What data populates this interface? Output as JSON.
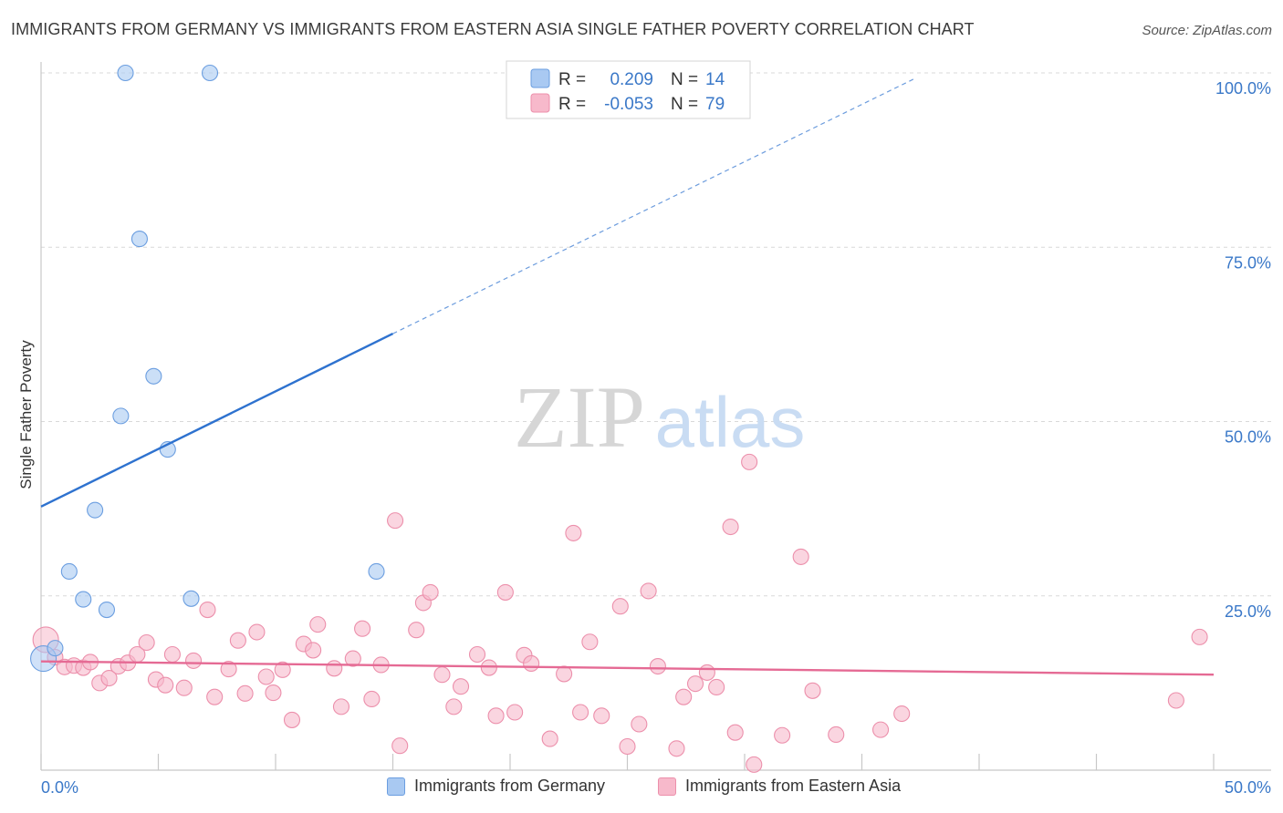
{
  "title": "IMMIGRANTS FROM GERMANY VS IMMIGRANTS FROM EASTERN ASIA SINGLE FATHER POVERTY CORRELATION CHART",
  "source": "Source: ZipAtlas.com",
  "watermark": {
    "zip": "ZIP",
    "atlas": "atlas"
  },
  "colors": {
    "blue_fill": "#a9c9f2",
    "blue_stroke": "#6b9ee0",
    "blue_line": "#2e72cf",
    "pink_fill": "#f7b9cb",
    "pink_stroke": "#ec8fab",
    "pink_line": "#e56a94",
    "tick_text": "#3a78c8",
    "grid": "#d9d9d9"
  },
  "legend": {
    "rows": [
      {
        "r_label": "R =",
        "r_value": "0.209",
        "n_label": "N =",
        "n_value": "14",
        "color": "blue"
      },
      {
        "r_label": "R =",
        "r_value": "-0.053",
        "n_label": "N =",
        "n_value": "79",
        "color": "pink"
      }
    ]
  },
  "bottom_legend": [
    {
      "label": "Immigrants from Germany",
      "color": "blue"
    },
    {
      "label": "Immigrants from Eastern Asia",
      "color": "pink"
    }
  ],
  "chart_data": {
    "type": "scatter",
    "title": "IMMIGRANTS FROM GERMANY VS IMMIGRANTS FROM EASTERN ASIA SINGLE FATHER POVERTY CORRELATION CHART",
    "xlabel": "",
    "ylabel": "Single Father Poverty",
    "xlim": [
      0,
      50
    ],
    "ylim": [
      0,
      100
    ],
    "x_tick_labels": [
      "0.0%",
      "50.0%"
    ],
    "y_ticks": [
      25,
      50,
      75,
      100
    ],
    "y_tick_labels": [
      "25.0%",
      "50.0%",
      "75.0%",
      "100.0%"
    ],
    "grid": true,
    "legend_position": "top-center",
    "series": [
      {
        "name": "Immigrants from Germany",
        "color": "blue",
        "r": 0.209,
        "n": 14,
        "trend": {
          "x0": 0,
          "y0": 37.8,
          "x_solid_end": 15,
          "y_solid_end": 62.6,
          "x1": 37.2,
          "y1": 99.1
        },
        "points": [
          [
            0.1,
            16.0
          ],
          [
            0.6,
            17.5
          ],
          [
            1.2,
            28.5
          ],
          [
            1.8,
            24.5
          ],
          [
            2.3,
            37.3
          ],
          [
            2.8,
            23.0
          ],
          [
            3.4,
            50.8
          ],
          [
            3.6,
            100.0
          ],
          [
            4.2,
            76.2
          ],
          [
            4.8,
            56.5
          ],
          [
            5.4,
            46.0
          ],
          [
            6.4,
            24.6
          ],
          [
            7.2,
            100.0
          ],
          [
            14.3,
            28.5
          ]
        ]
      },
      {
        "name": "Immigrants from Eastern Asia",
        "color": "pink",
        "r": -0.053,
        "n": 79,
        "trend": {
          "x0": 0,
          "y0": 15.6,
          "x1": 50,
          "y1": 13.7
        },
        "points": [
          [
            0.2,
            18.7
          ],
          [
            0.6,
            16.2
          ],
          [
            1.0,
            14.8
          ],
          [
            1.4,
            15.0
          ],
          [
            1.8,
            14.7
          ],
          [
            2.1,
            15.5
          ],
          [
            2.5,
            12.5
          ],
          [
            2.9,
            13.2
          ],
          [
            3.3,
            14.9
          ],
          [
            3.7,
            15.4
          ],
          [
            4.1,
            16.6
          ],
          [
            4.5,
            18.3
          ],
          [
            4.9,
            13.0
          ],
          [
            5.3,
            12.2
          ],
          [
            5.6,
            16.6
          ],
          [
            6.1,
            11.8
          ],
          [
            6.5,
            15.7
          ],
          [
            7.1,
            23.0
          ],
          [
            7.4,
            10.5
          ],
          [
            8.0,
            14.5
          ],
          [
            8.4,
            18.6
          ],
          [
            8.7,
            11.0
          ],
          [
            9.2,
            19.8
          ],
          [
            9.6,
            13.4
          ],
          [
            9.9,
            11.1
          ],
          [
            10.3,
            14.4
          ],
          [
            10.7,
            7.2
          ],
          [
            11.2,
            18.1
          ],
          [
            11.6,
            17.2
          ],
          [
            11.8,
            20.9
          ],
          [
            12.5,
            14.6
          ],
          [
            12.8,
            9.1
          ],
          [
            13.3,
            16.0
          ],
          [
            13.7,
            20.3
          ],
          [
            14.1,
            10.2
          ],
          [
            14.5,
            15.1
          ],
          [
            15.1,
            35.8
          ],
          [
            15.3,
            3.5
          ],
          [
            16.0,
            20.1
          ],
          [
            16.3,
            24.0
          ],
          [
            16.6,
            25.5
          ],
          [
            17.1,
            13.7
          ],
          [
            17.6,
            9.1
          ],
          [
            17.9,
            12.0
          ],
          [
            18.6,
            16.6
          ],
          [
            19.1,
            14.7
          ],
          [
            19.4,
            7.8
          ],
          [
            19.8,
            25.5
          ],
          [
            20.2,
            8.3
          ],
          [
            20.6,
            16.5
          ],
          [
            20.9,
            15.3
          ],
          [
            21.7,
            4.5
          ],
          [
            22.3,
            13.8
          ],
          [
            22.7,
            34.0
          ],
          [
            23.0,
            8.3
          ],
          [
            23.4,
            18.4
          ],
          [
            23.9,
            7.8
          ],
          [
            24.7,
            23.5
          ],
          [
            25.0,
            3.4
          ],
          [
            25.5,
            6.6
          ],
          [
            25.9,
            25.7
          ],
          [
            26.3,
            14.9
          ],
          [
            27.1,
            3.1
          ],
          [
            27.4,
            10.5
          ],
          [
            27.9,
            12.4
          ],
          [
            28.4,
            14.0
          ],
          [
            28.8,
            11.9
          ],
          [
            29.4,
            34.9
          ],
          [
            29.6,
            5.4
          ],
          [
            30.4,
            0.8
          ],
          [
            30.2,
            44.2
          ],
          [
            32.4,
            30.6
          ],
          [
            32.9,
            11.4
          ],
          [
            33.9,
            5.1
          ],
          [
            35.8,
            5.8
          ],
          [
            36.7,
            8.1
          ],
          [
            48.4,
            10.0
          ],
          [
            49.4,
            19.1
          ],
          [
            31.6,
            5.0
          ]
        ]
      }
    ]
  }
}
